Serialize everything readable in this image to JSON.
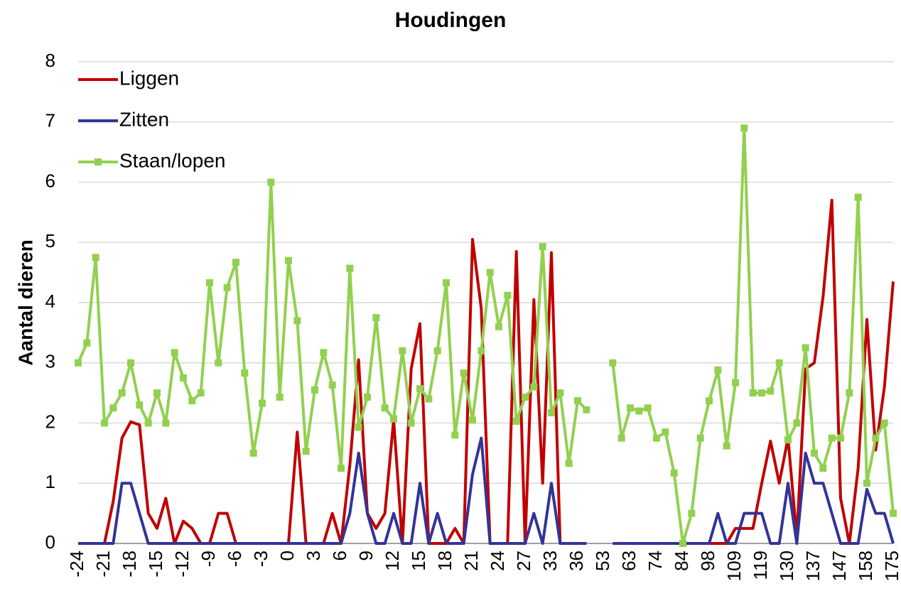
{
  "chart_data": {
    "type": "line",
    "title": "Houdingen",
    "ylabel": "Aantal dieren",
    "categories": [
      "-24",
      null,
      null,
      "-21",
      null,
      null,
      "-18",
      null,
      null,
      "-15",
      null,
      null,
      "-12",
      null,
      null,
      "-9",
      null,
      null,
      "-6",
      null,
      null,
      "-3",
      null,
      null,
      "0",
      null,
      null,
      "3",
      null,
      null,
      "6",
      null,
      null,
      "9",
      null,
      null,
      "12",
      null,
      null,
      "15",
      null,
      null,
      "18",
      null,
      null,
      "21",
      null,
      null,
      "24",
      null,
      null,
      "27",
      null,
      null,
      "33",
      null,
      null,
      "36",
      null,
      null,
      "53",
      null,
      null,
      "63",
      null,
      null,
      "74",
      null,
      null,
      "84",
      null,
      null,
      "98",
      null,
      null,
      "109",
      null,
      null,
      "119",
      null,
      null,
      "130",
      null,
      null,
      "137",
      null,
      null,
      "147",
      null,
      null,
      "158",
      null,
      null,
      "175"
    ],
    "series": [
      {
        "name": "Liggen",
        "color": "#c00000",
        "marker": false,
        "values": [
          0,
          0,
          0,
          0,
          0.7,
          1.75,
          2.02,
          1.97,
          0.5,
          0.25,
          0.75,
          0,
          0.37,
          0.25,
          0,
          0,
          0.5,
          0.5,
          0,
          0,
          0,
          0,
          0,
          0,
          0,
          1.85,
          0,
          0,
          0,
          0.5,
          0,
          1.3,
          3.05,
          0.5,
          0.25,
          0.5,
          2.05,
          0,
          2.9,
          3.65,
          0,
          0,
          0,
          0.25,
          0,
          5.05,
          3.9,
          0,
          0,
          0,
          4.85,
          0,
          4.05,
          1,
          4.83,
          0,
          0,
          0,
          0,
          null,
          null,
          0,
          0,
          0,
          0,
          0,
          0,
          0,
          0,
          0,
          0,
          0,
          0,
          0,
          0,
          0.25,
          0.25,
          0.25,
          1,
          1.7,
          1,
          1.75,
          0.1,
          2.9,
          3,
          4.1,
          5.7,
          0.75,
          0,
          1.25,
          3.72,
          1.55,
          2.6,
          4.35
        ]
      },
      {
        "name": "Zitten",
        "color": "#333399",
        "marker": false,
        "values": [
          0,
          0,
          0,
          0,
          0,
          1,
          1,
          0.5,
          0,
          0,
          0,
          0,
          0,
          0,
          0,
          0,
          0,
          0,
          0,
          0,
          0,
          0,
          0,
          0,
          0,
          0,
          0,
          0,
          0,
          0,
          0,
          0.5,
          1.5,
          0.5,
          0,
          0,
          0.5,
          0,
          0,
          1,
          0,
          0.5,
          0,
          0,
          0,
          1.15,
          1.75,
          0,
          0,
          0,
          0,
          0,
          0.5,
          0,
          1,
          0,
          0,
          0,
          0,
          null,
          null,
          0,
          0,
          0,
          0,
          0,
          0,
          0,
          0,
          0,
          0,
          0,
          0,
          0.5,
          0,
          0,
          0.5,
          0.5,
          0.5,
          0,
          0,
          1,
          0,
          1.5,
          1,
          1,
          0.5,
          0,
          0,
          0,
          0.9,
          0.5,
          0.5,
          0
        ]
      },
      {
        "name": "Staan/lopen",
        "color": "#92d050",
        "marker": true,
        "values": [
          3,
          3.33,
          4.75,
          2,
          2.25,
          2.5,
          3,
          2.3,
          2,
          2.5,
          2,
          3.17,
          2.75,
          2.37,
          2.5,
          4.33,
          3,
          4.25,
          4.67,
          2.83,
          1.5,
          2.33,
          6,
          2.43,
          4.7,
          3.7,
          1.53,
          2.55,
          3.17,
          2.63,
          1.25,
          4.57,
          1.93,
          2.43,
          3.75,
          2.25,
          2.07,
          3.2,
          2,
          2.57,
          2.4,
          3.2,
          4.33,
          1.8,
          2.83,
          2.05,
          3.2,
          4.5,
          3.6,
          4.12,
          2.03,
          2.43,
          2.6,
          4.93,
          2.17,
          2.5,
          1.33,
          2.37,
          2.22,
          null,
          null,
          3,
          1.75,
          2.25,
          2.2,
          2.25,
          1.75,
          1.85,
          1.17,
          0,
          0.5,
          1.75,
          2.37,
          2.88,
          1.62,
          2.67,
          6.9,
          2.5,
          2.5,
          2.53,
          3,
          1.72,
          2,
          3.25,
          1.5,
          1.25,
          1.75,
          1.75,
          2.5,
          5.75,
          1,
          1.75,
          2,
          0.5
        ]
      }
    ],
    "ylim": [
      0,
      8
    ],
    "yticks": [
      0,
      1,
      2,
      3,
      4,
      5,
      6,
      7,
      8
    ],
    "grid": true,
    "legend": "upper left"
  }
}
